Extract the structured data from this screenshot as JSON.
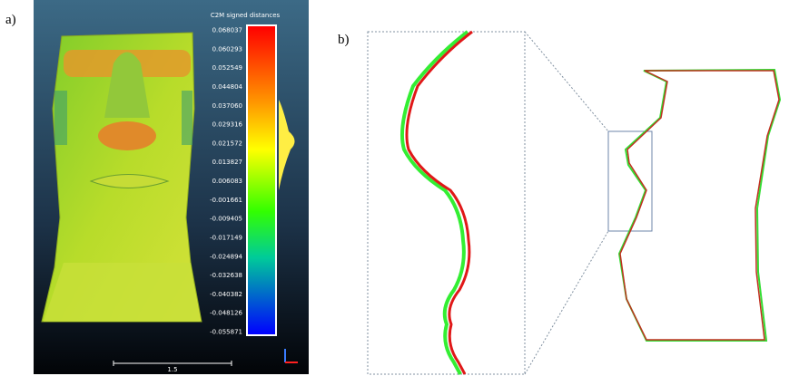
{
  "panel_a": {
    "label": "a)",
    "colorbar": {
      "title": "C2M signed distances",
      "ticks": [
        "0.068037",
        "0.060293",
        "0.052549",
        "0.044804",
        "0.037060",
        "0.029316",
        "0.021572",
        "0.013827",
        "0.006083",
        "-0.001661",
        "-0.009405",
        "-0.017149",
        "-0.024894",
        "-0.032638",
        "-0.040382",
        "-0.048126",
        "-0.055871"
      ]
    },
    "scale_label": "1.5"
  },
  "panel_b": {
    "label": "b)"
  }
}
